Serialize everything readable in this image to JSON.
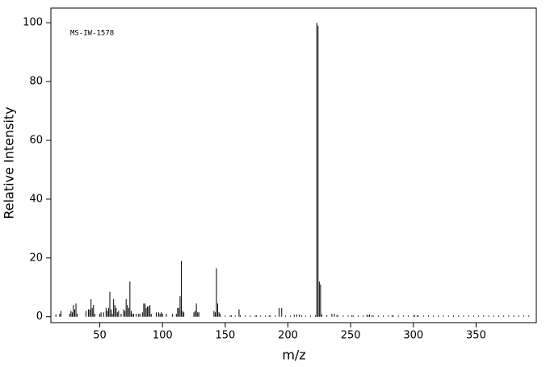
{
  "chart_data": {
    "type": "stick",
    "annotation": "MS-IW-1578",
    "xlabel": "m/z",
    "ylabel": "Relative Intensity",
    "xlim": [
      11,
      398
    ],
    "ylim": [
      -2,
      105
    ],
    "xticks": [
      50,
      100,
      150,
      200,
      250,
      300,
      350
    ],
    "yticks": [
      0,
      20,
      40,
      60,
      80,
      100
    ],
    "color": "#000000",
    "x": [
      15,
      18,
      19,
      26,
      27,
      28,
      29,
      30,
      31,
      32,
      39,
      41,
      42,
      43,
      44,
      45,
      46,
      50,
      51,
      53,
      55,
      56,
      57,
      58,
      59,
      60,
      61,
      62,
      63,
      64,
      65,
      67,
      69,
      70,
      71,
      72,
      73,
      74,
      75,
      76,
      77,
      79,
      81,
      82,
      84,
      85,
      86,
      87,
      88,
      89,
      90,
      91,
      95,
      97,
      98,
      99,
      100,
      103,
      108,
      111,
      112,
      113,
      114,
      115,
      116,
      117,
      125,
      126,
      127,
      128,
      129,
      141,
      142,
      143,
      144,
      145,
      146,
      150,
      154,
      155,
      158,
      161,
      162,
      166,
      170,
      174,
      175,
      178,
      182,
      185,
      186,
      190,
      193,
      195,
      198,
      202,
      205,
      207,
      209,
      211,
      214,
      218,
      222,
      223,
      224,
      225,
      226,
      227,
      231,
      235,
      237,
      239,
      240,
      244,
      248,
      251,
      252,
      256,
      260,
      263,
      264,
      265,
      267,
      268,
      272,
      276,
      280,
      283,
      284,
      288,
      292,
      296,
      300,
      301,
      303,
      304,
      308,
      312,
      316,
      320,
      324,
      328,
      332,
      336,
      340,
      344,
      348,
      352,
      356,
      360,
      364,
      368,
      372,
      376,
      380,
      384,
      388,
      392
    ],
    "values": [
      0.8,
      1,
      2,
      1,
      2,
      1.5,
      4,
      2.5,
      4.5,
      1,
      2,
      2.5,
      2.5,
      6,
      3,
      4,
      1,
      1,
      1.5,
      1.5,
      3,
      2,
      3,
      8.5,
      2.5,
      1,
      6,
      4,
      3,
      1.5,
      2,
      1,
      2.5,
      2,
      6,
      4,
      3,
      12,
      2,
      1,
      1,
      1,
      1,
      1,
      1.5,
      4.5,
      4.5,
      3,
      3.5,
      3.5,
      4,
      1,
      1.5,
      1.5,
      1,
      1.5,
      1,
      1,
      1,
      1,
      3,
      3,
      7,
      19,
      2,
      1.5,
      1.5,
      2,
      4.5,
      1.5,
      1.5,
      2,
      1.5,
      16.5,
      4.5,
      1.5,
      1,
      0.4,
      0.4,
      0.5,
      0.4,
      2.5,
      0.5,
      0.4,
      0.4,
      0.4,
      0.5,
      0.4,
      0.4,
      0.5,
      0.4,
      0.4,
      3,
      3,
      0.4,
      0.4,
      0.7,
      0.8,
      0.7,
      0.5,
      0.4,
      0.4,
      0.5,
      100,
      99,
      12,
      11,
      0.8,
      0.5,
      1,
      1,
      0.6,
      0.4,
      0.4,
      0.4,
      0.5,
      0.4,
      0.4,
      0.4,
      0.7,
      0.4,
      0.8,
      0.5,
      0.4,
      0.4,
      0.4,
      0.4,
      0.5,
      0.4,
      0.4,
      0.4,
      0.4,
      0.4,
      0.6,
      0.5,
      0.4,
      0.4,
      0.4,
      0.4,
      0.4,
      0.4,
      0.4,
      0.4,
      0.4,
      0.4,
      0.4,
      0.4,
      0.4,
      0.4,
      0.4,
      0.4,
      0.4,
      0.4,
      0.4,
      0.4,
      0.4,
      0.4,
      0.4
    ]
  }
}
